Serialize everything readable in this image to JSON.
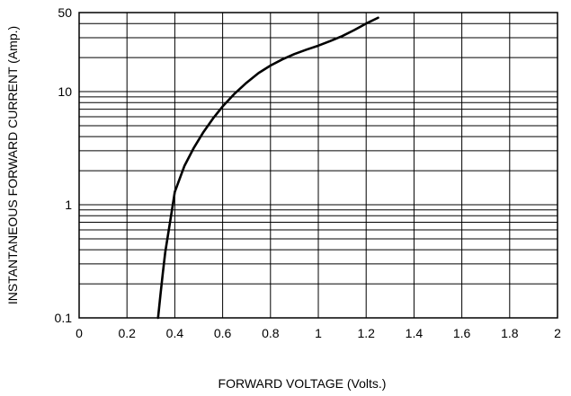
{
  "chart_data": {
    "type": "line",
    "title": "",
    "xlabel": "FORWARD VOLTAGE (Volts.)",
    "ylabel": "INSTANTANEOUS FORWARD CURRENT (Amp.)",
    "xlim": [
      0,
      2
    ],
    "ylim": [
      0.1,
      50
    ],
    "yscale": "log",
    "grid": true,
    "legend": "none",
    "x_ticks": [
      0,
      0.2,
      0.4,
      0.6,
      0.8,
      1,
      1.2,
      1.4,
      1.6,
      1.8,
      2
    ],
    "x_tick_labels": [
      "0",
      "0.2",
      "0.4",
      "0.6",
      "0.8",
      "1",
      "1.2",
      "1.4",
      "1.6",
      "1.8",
      "2"
    ],
    "y_ticks": [
      0.1,
      1,
      10,
      50
    ],
    "y_tick_labels": [
      "0.1",
      "1",
      "10",
      "50"
    ],
    "series": [
      {
        "color": "#000000",
        "x": [
          0.33,
          0.34,
          0.35,
          0.36,
          0.38,
          0.4,
          0.44,
          0.48,
          0.52,
          0.56,
          0.6,
          0.65,
          0.7,
          0.75,
          0.8,
          0.85,
          0.9,
          0.95,
          1.0,
          1.05,
          1.1,
          1.15,
          1.2,
          1.25
        ],
        "y": [
          0.1,
          0.16,
          0.25,
          0.38,
          0.7,
          1.3,
          2.2,
          3.2,
          4.4,
          5.8,
          7.4,
          9.6,
          12.0,
          14.6,
          17.0,
          19.3,
          21.5,
          23.5,
          25.5,
          28.0,
          31.0,
          35.0,
          40.0,
          45.0
        ]
      }
    ]
  }
}
